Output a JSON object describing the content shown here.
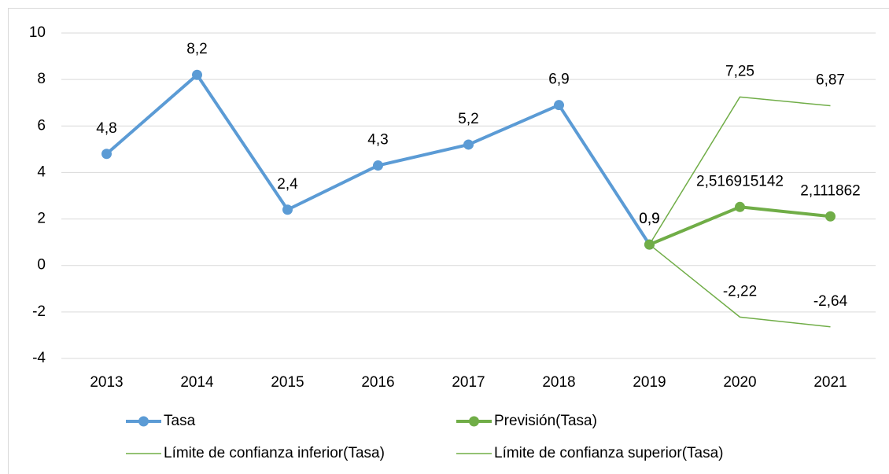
{
  "chart_data": {
    "type": "line",
    "categories": [
      "2013",
      "2014",
      "2015",
      "2016",
      "2017",
      "2018",
      "2019",
      "2020",
      "2021"
    ],
    "series": [
      {
        "name": "Tasa",
        "color": "#5b9bd5",
        "marker": true,
        "line_width": 4,
        "values": [
          4.8,
          8.2,
          2.4,
          4.3,
          5.2,
          6.9,
          0.9,
          null,
          null
        ],
        "value_labels": [
          "4,8",
          "8,2",
          "2,4",
          "4,3",
          "5,2",
          "6,9",
          "0,9",
          null,
          null
        ]
      },
      {
        "name": "Previsión(Tasa)",
        "color": "#70ad47",
        "marker": true,
        "line_width": 4,
        "values": [
          null,
          null,
          null,
          null,
          null,
          null,
          0.9,
          2.516915142,
          2.111862
        ],
        "value_labels": [
          null,
          null,
          null,
          null,
          null,
          null,
          "0,9",
          "2,516915142",
          "2,111862"
        ]
      },
      {
        "name": "Límite de confianza inferior(Tasa)",
        "color": "#70ad47",
        "marker": false,
        "line_width": 1.5,
        "values": [
          null,
          null,
          null,
          null,
          null,
          null,
          0.9,
          -2.22,
          -2.64
        ],
        "value_labels": [
          null,
          null,
          null,
          null,
          null,
          null,
          null,
          "-2,22",
          "-2,64"
        ]
      },
      {
        "name": "Límite de confianza superior(Tasa)",
        "color": "#70ad47",
        "marker": false,
        "line_width": 1.5,
        "values": [
          null,
          null,
          null,
          null,
          null,
          null,
          0.9,
          7.25,
          6.87
        ],
        "value_labels": [
          null,
          null,
          null,
          null,
          null,
          null,
          null,
          "7,25",
          "6,87"
        ]
      }
    ],
    "ylim": [
      -4,
      10
    ],
    "yticks": [
      -4,
      -2,
      0,
      2,
      4,
      6,
      8,
      10
    ],
    "grid": true,
    "legend": "bottom"
  }
}
